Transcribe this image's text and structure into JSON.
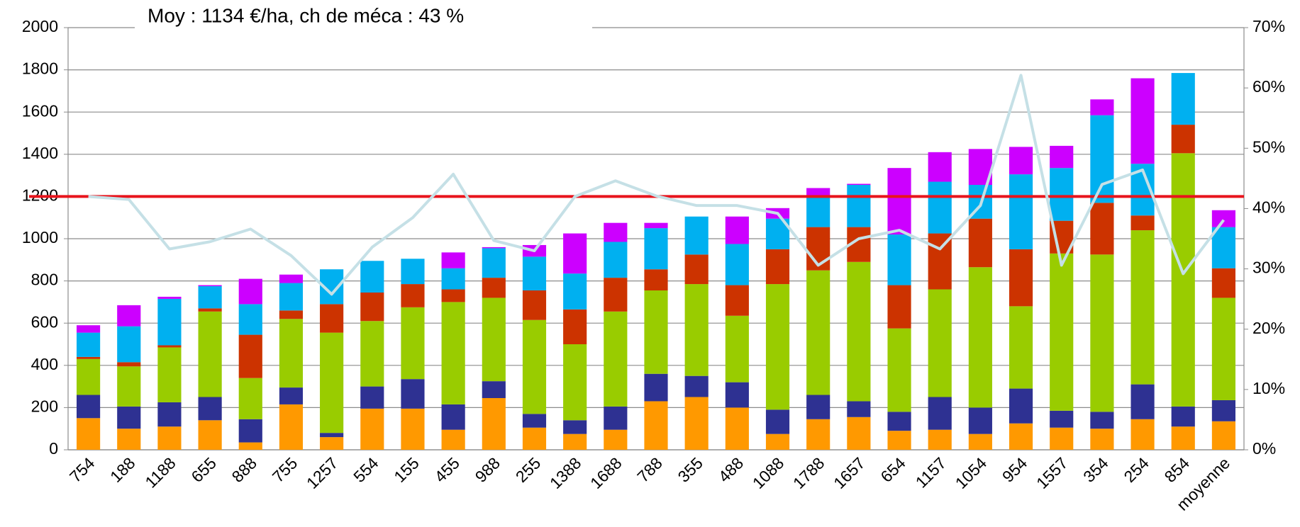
{
  "chart_data": {
    "type": "bar",
    "stacked": true,
    "title": "Moy : 1134 €/ha, ch de méca : 43 %",
    "categories": [
      "754",
      "188",
      "1188",
      "655",
      "888",
      "755",
      "1257",
      "554",
      "155",
      "455",
      "988",
      "255",
      "1388",
      "1688",
      "788",
      "355",
      "488",
      "1088",
      "1788",
      "1657",
      "654",
      "1157",
      "1054",
      "954",
      "1557",
      "354",
      "254",
      "854",
      "moyenne"
    ],
    "series": [
      {
        "color": "#ff9900",
        "values": [
          150,
          100,
          110,
          140,
          35,
          215,
          60,
          195,
          195,
          95,
          245,
          105,
          75,
          95,
          230,
          250,
          200,
          75,
          145,
          155,
          90,
          95,
          75,
          125,
          105,
          100,
          145,
          110,
          135
        ]
      },
      {
        "color": "#2e3192",
        "values": [
          110,
          105,
          115,
          110,
          110,
          80,
          20,
          105,
          140,
          120,
          80,
          65,
          65,
          110,
          130,
          100,
          120,
          115,
          115,
          75,
          90,
          155,
          125,
          165,
          80,
          80,
          165,
          95,
          100
        ]
      },
      {
        "color": "#99cc00",
        "values": [
          170,
          190,
          260,
          405,
          195,
          325,
          475,
          310,
          340,
          485,
          395,
          445,
          360,
          450,
          395,
          435,
          315,
          595,
          590,
          660,
          395,
          510,
          665,
          390,
          745,
          745,
          730,
          1200,
          485
        ]
      },
      {
        "color": "#cc3300",
        "values": [
          10,
          20,
          10,
          15,
          205,
          40,
          135,
          135,
          110,
          60,
          95,
          140,
          165,
          160,
          100,
          140,
          145,
          165,
          205,
          165,
          205,
          265,
          230,
          270,
          155,
          245,
          70,
          135,
          140
        ]
      },
      {
        "color": "#00b0f0",
        "values": [
          115,
          170,
          220,
          105,
          145,
          130,
          165,
          150,
          120,
          100,
          140,
          160,
          170,
          170,
          195,
          180,
          195,
          145,
          145,
          200,
          240,
          245,
          160,
          355,
          250,
          415,
          245,
          245,
          195
        ]
      },
      {
        "color": "#cc00ff",
        "values": [
          35,
          100,
          10,
          5,
          120,
          40,
          0,
          0,
          0,
          75,
          5,
          55,
          190,
          90,
          25,
          0,
          130,
          50,
          40,
          5,
          315,
          140,
          170,
          130,
          105,
          75,
          405,
          0,
          80
        ]
      },
      {
        "type": "line",
        "axis": "y2",
        "color": "#c5e0e6",
        "values": [
          42,
          41.5,
          33.3,
          34.5,
          36.6,
          32.2,
          25.8,
          33.6,
          38.5,
          45.7,
          34.7,
          33,
          42,
          44.6,
          42.1,
          40.5,
          40.5,
          39.2,
          30.6,
          35,
          36.4,
          33.3,
          40.5,
          62.1,
          30.6,
          44,
          46.4,
          29.2,
          38.1
        ]
      }
    ],
    "hline": {
      "value": 1200,
      "color": "#e8141c"
    },
    "ylim": [
      0,
      2000
    ],
    "yticks": [
      0,
      200,
      400,
      600,
      800,
      1000,
      1200,
      1400,
      1600,
      1800,
      2000
    ],
    "y2lim": [
      0,
      70
    ],
    "y2ticks": [
      {
        "value": 0,
        "label": "0%"
      },
      {
        "value": 10,
        "label": "10%"
      },
      {
        "value": 20,
        "label": "20%"
      },
      {
        "value": 30,
        "label": "30%"
      },
      {
        "value": 40,
        "label": "40%"
      },
      {
        "value": 50,
        "label": "50%"
      },
      {
        "value": 60,
        "label": "60%"
      },
      {
        "value": 70,
        "label": "70%"
      }
    ],
    "grid": true
  }
}
